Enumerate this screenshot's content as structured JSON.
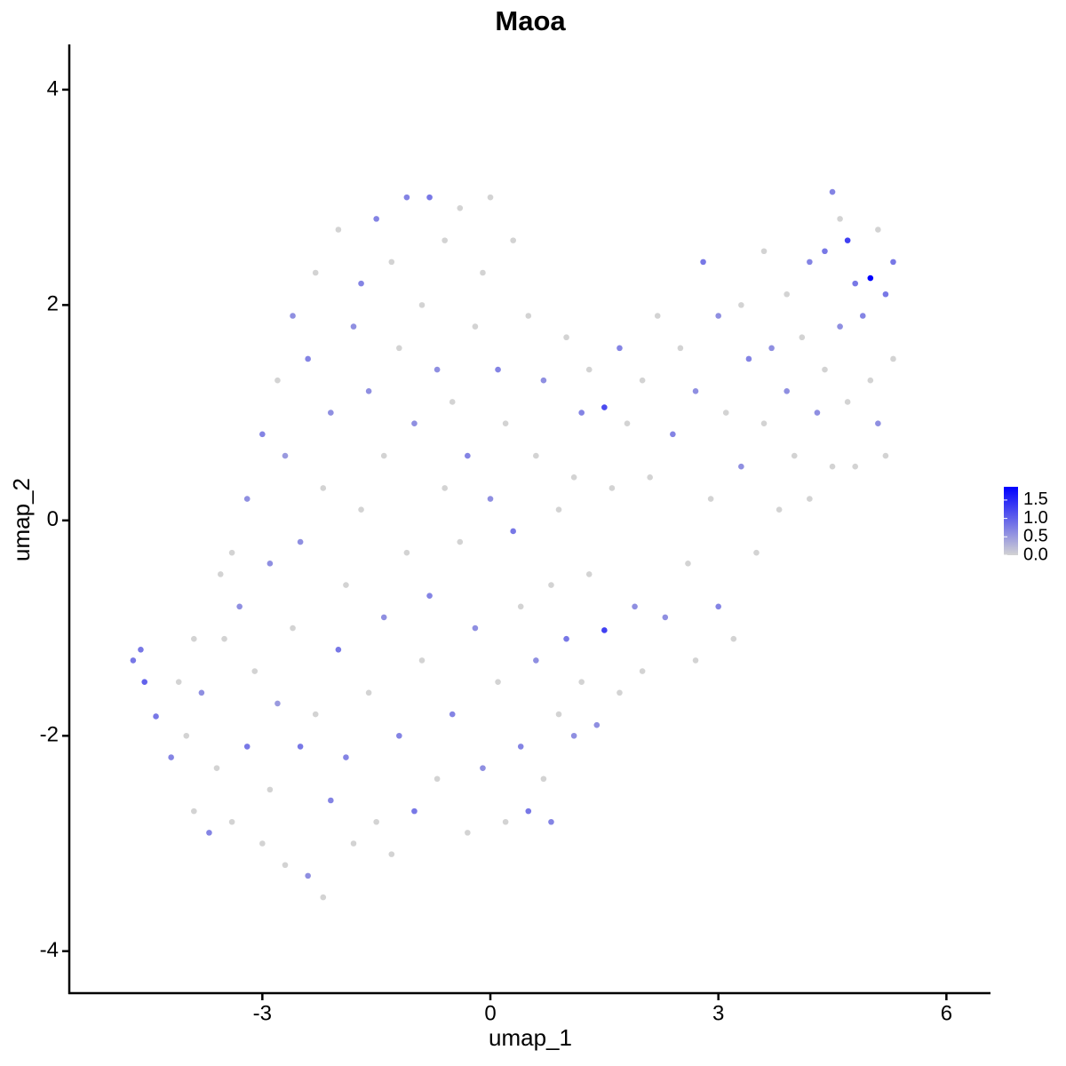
{
  "chart_data": {
    "type": "scatter",
    "title": "Maoa",
    "x_label": "umap_1",
    "y_label": "umap_2",
    "xlim": [
      -5.54,
      6.58
    ],
    "ylim": [
      -4.39,
      4.42
    ],
    "xticks": [
      -3,
      0,
      3,
      6
    ],
    "yticks": [
      -4,
      -2,
      0,
      2,
      4
    ],
    "grid": false,
    "low_color": "#d3d3d3",
    "high_color": "#0000ff",
    "clim": [
      0,
      1.86
    ],
    "cticks": [
      {
        "value": 0,
        "label": "0.0"
      },
      {
        "value": 0.5,
        "label": "0.5"
      },
      {
        "value": 1,
        "label": "1.0"
      },
      {
        "value": 1.5,
        "label": "1.5"
      }
    ],
    "x": [
      -4.7,
      -4.6,
      -4.55,
      -4.4,
      -4.2,
      -4.1,
      -4.0,
      -3.9,
      -3.8,
      -3.7,
      -3.6,
      -3.5,
      -3.4,
      -3.4,
      -3.3,
      -3.2,
      -3.2,
      -3.1,
      -3.0,
      -3.0,
      -2.9,
      -2.9,
      -2.8,
      -2.8,
      -2.7,
      -2.7,
      -2.6,
      -2.6,
      -2.5,
      -2.5,
      -2.4,
      -2.4,
      -2.3,
      -2.3,
      -2.2,
      -2.2,
      -2.1,
      -2.1,
      -2.0,
      -2.0,
      -1.9,
      -1.9,
      -1.8,
      -1.8,
      -1.7,
      -1.7,
      -1.6,
      -1.6,
      -1.5,
      -1.5,
      -1.4,
      -1.4,
      -1.3,
      -1.3,
      -1.2,
      -1.2,
      -1.1,
      -1.1,
      -1.0,
      -1.0,
      -0.9,
      -0.9,
      -0.8,
      -0.8,
      -0.7,
      -0.7,
      -0.6,
      -0.6,
      -0.5,
      -0.5,
      -0.4,
      -0.4,
      -0.3,
      -0.3,
      -0.2,
      -0.2,
      -0.1,
      -0.1,
      0.0,
      0.0,
      0.1,
      0.1,
      0.2,
      0.2,
      0.3,
      0.3,
      0.4,
      0.4,
      0.5,
      0.5,
      0.6,
      0.6,
      0.7,
      0.7,
      0.8,
      0.8,
      0.9,
      0.9,
      1.0,
      1.0,
      1.1,
      1.1,
      1.2,
      1.2,
      1.3,
      1.3,
      1.4,
      1.5,
      1.5,
      1.6,
      1.7,
      1.7,
      1.8,
      1.9,
      2.0,
      2.0,
      2.1,
      2.2,
      2.3,
      2.4,
      2.5,
      2.6,
      2.7,
      2.7,
      2.8,
      2.9,
      3.0,
      3.0,
      3.1,
      3.2,
      3.3,
      3.3,
      3.4,
      3.5,
      3.6,
      3.6,
      3.7,
      3.8,
      3.9,
      3.9,
      4.0,
      4.1,
      4.2,
      4.2,
      4.3,
      4.4,
      4.4,
      4.5,
      4.5,
      4.6,
      4.6,
      4.7,
      4.7,
      4.8,
      4.8,
      4.9,
      5.0,
      5.0,
      5.1,
      5.1,
      5.2,
      5.2,
      5.3,
      5.3,
      -3.55,
      -3.9
    ],
    "y": [
      -1.3,
      -1.2,
      -1.5,
      -1.82,
      -2.2,
      -1.5,
      -2.0,
      -2.7,
      -1.6,
      -2.9,
      -2.3,
      -1.1,
      -2.8,
      -0.3,
      -0.8,
      -2.1,
      0.2,
      -1.4,
      -3.0,
      0.8,
      -2.5,
      -0.4,
      -1.7,
      1.3,
      -3.2,
      0.6,
      1.9,
      -1.0,
      -2.1,
      -0.2,
      -3.3,
      1.5,
      -1.8,
      2.3,
      -3.5,
      0.3,
      -2.6,
      1.0,
      -1.2,
      2.7,
      -2.2,
      -0.6,
      1.8,
      -3.0,
      0.1,
      2.2,
      -1.6,
      1.2,
      -2.8,
      2.8,
      -0.9,
      0.6,
      -3.1,
      2.4,
      -2.0,
      1.6,
      -0.3,
      3.0,
      -2.7,
      0.9,
      2.0,
      -1.3,
      3.0,
      -0.7,
      1.4,
      -2.4,
      0.3,
      2.6,
      -1.8,
      1.1,
      -0.2,
      2.9,
      -2.9,
      0.6,
      1.8,
      -1.0,
      2.3,
      -2.3,
      0.2,
      3.0,
      -1.5,
      1.4,
      -2.8,
      0.9,
      -0.1,
      2.6,
      -2.1,
      -0.8,
      1.9,
      -2.7,
      0.6,
      -1.3,
      -2.4,
      1.3,
      -0.6,
      -2.8,
      0.1,
      -1.8,
      1.7,
      -1.1,
      0.4,
      -2.0,
      1.0,
      -1.5,
      -0.5,
      1.4,
      -1.9,
      1.05,
      -1.02,
      0.3,
      1.6,
      -1.6,
      0.9,
      -0.8,
      1.3,
      -1.4,
      0.4,
      1.9,
      -0.9,
      0.8,
      1.6,
      -0.4,
      1.2,
      -1.3,
      2.4,
      0.2,
      1.9,
      -0.8,
      1.0,
      -1.1,
      2.0,
      0.5,
      1.5,
      -0.3,
      2.5,
      0.9,
      1.6,
      0.1,
      2.1,
      1.2,
      0.6,
      1.7,
      2.4,
      0.2,
      1.0,
      2.5,
      1.4,
      3.05,
      0.5,
      2.8,
      1.8,
      2.6,
      1.1,
      2.2,
      0.5,
      1.9,
      2.25,
      1.3,
      2.7,
      0.9,
      2.1,
      0.6,
      2.4,
      1.5,
      -0.5,
      -1.1
    ],
    "expression": [
      0.8,
      0.8,
      1.0,
      0.8,
      0.7,
      0,
      0,
      0,
      0.6,
      0.7,
      0,
      0,
      0,
      0,
      0.6,
      0.8,
      0.6,
      0,
      0,
      0.7,
      0,
      0.6,
      0.5,
      0,
      0,
      0.5,
      0.6,
      0,
      0.8,
      0.6,
      0.6,
      0.7,
      0,
      0,
      0,
      0,
      0.7,
      0.6,
      0.8,
      0,
      0.7,
      0,
      0.6,
      0,
      0,
      0.7,
      0,
      0.6,
      0,
      0.7,
      0.6,
      0,
      0,
      0,
      0.7,
      0,
      0,
      0.7,
      0.8,
      0.6,
      0,
      0,
      0.8,
      0.7,
      0.6,
      0,
      0,
      0,
      0.7,
      0,
      0,
      0,
      0,
      0.7,
      0,
      0.6,
      0,
      0.6,
      0.6,
      0,
      0,
      0.7,
      0,
      0,
      0.8,
      0,
      0.7,
      0,
      0,
      0.8,
      0,
      0.6,
      0,
      0.6,
      0,
      0.7,
      0,
      0,
      0,
      0.8,
      0,
      0.6,
      0.7,
      0,
      0,
      0,
      0.6,
      1.2,
      1.3,
      0,
      0.7,
      0,
      0,
      0.6,
      0,
      0,
      0,
      0,
      0.6,
      0.7,
      0,
      0,
      0.6,
      0,
      0.8,
      0,
      0.6,
      0.7,
      0,
      0,
      0,
      0.6,
      0.7,
      0,
      0,
      0,
      0.6,
      0,
      0,
      0.6,
      0,
      0,
      0.7,
      0,
      0.6,
      0.8,
      0,
      0.7,
      0,
      0,
      0.6,
      1.3,
      0,
      0.8,
      0,
      0.7,
      1.86,
      0,
      0,
      0.6,
      0.8,
      0,
      0.8,
      0,
      0,
      0
    ]
  }
}
